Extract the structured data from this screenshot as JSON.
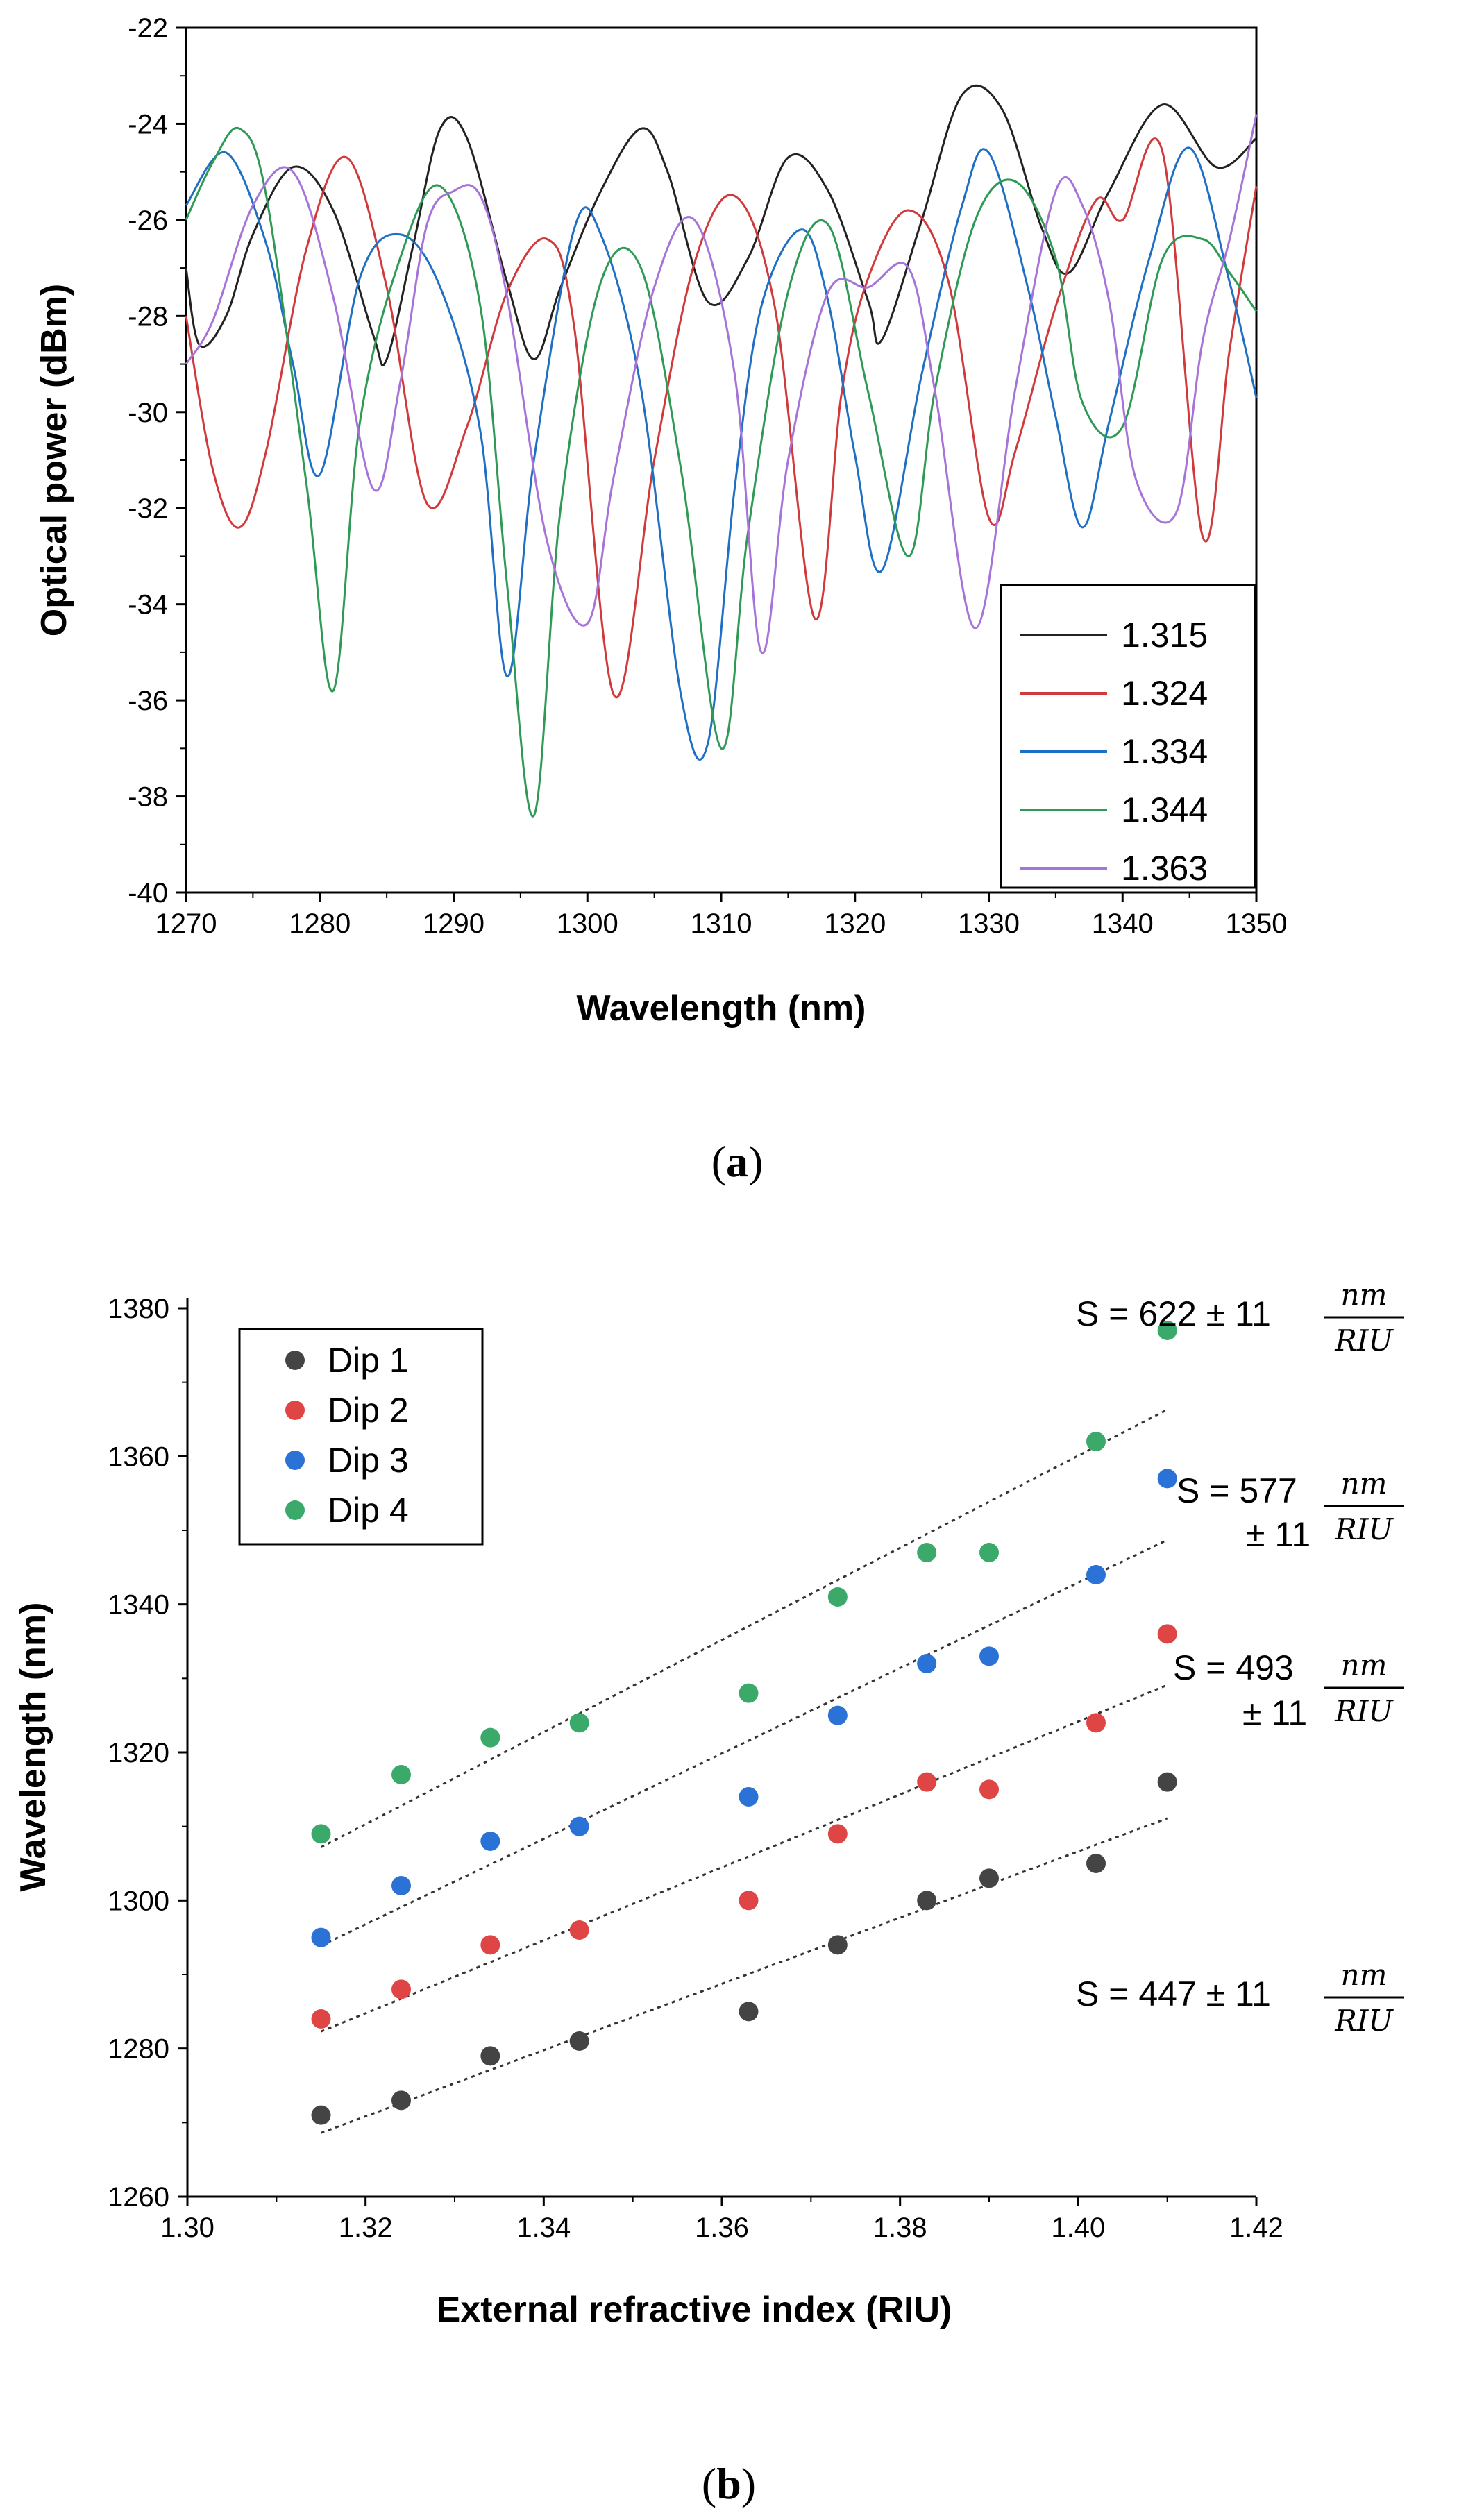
{
  "chart_data": [
    {
      "type": "line",
      "caption_open": "(",
      "caption_letter": "a",
      "caption_close": ")",
      "xlabel": "Wavelength (nm)",
      "ylabel": "Optical power (dBm)",
      "xlim": [
        1270,
        1350
      ],
      "ylim": [
        -40,
        -22
      ],
      "xticks": [
        1270,
        1280,
        1290,
        1300,
        1310,
        1320,
        1330,
        1340,
        1350
      ],
      "yticks": [
        -40,
        -38,
        -36,
        -34,
        -32,
        -30,
        -28,
        -26,
        -24,
        -22
      ],
      "legend_position": "bottom-right",
      "series": [
        {
          "name": "1.315",
          "color": "#222222",
          "x": [
            1270,
            1271,
            1273,
            1275,
            1278,
            1281,
            1284,
            1285,
            1287,
            1289,
            1291,
            1294,
            1296,
            1298,
            1301,
            1304,
            1306,
            1309,
            1312,
            1315,
            1318,
            1321,
            1322,
            1325,
            1328,
            1331,
            1334,
            1336,
            1339,
            1343,
            1347,
            1350
          ],
          "y": [
            -27.0,
            -28.6,
            -28.0,
            -26.3,
            -24.9,
            -25.8,
            -28.4,
            -28.9,
            -26.5,
            -24.1,
            -24.3,
            -27.3,
            -28.9,
            -27.4,
            -25.4,
            -24.1,
            -25.0,
            -27.7,
            -26.8,
            -24.7,
            -25.4,
            -27.7,
            -28.5,
            -26.0,
            -23.4,
            -23.7,
            -26.2,
            -27.1,
            -25.4,
            -23.6,
            -24.9,
            -24.3
          ]
        },
        {
          "name": "1.324",
          "color": "#d03a3a",
          "x": [
            1270,
            1272,
            1274,
            1276,
            1279,
            1282,
            1285,
            1288,
            1291,
            1294,
            1297,
            1299,
            1302,
            1305,
            1308,
            1311,
            1314,
            1317,
            1319,
            1321,
            1324,
            1327,
            1330,
            1332,
            1335,
            1338,
            1340,
            1343,
            1346,
            1348,
            1350
          ],
          "y": [
            -28.0,
            -31.2,
            -32.4,
            -30.8,
            -26.6,
            -24.7,
            -27.4,
            -31.9,
            -30.3,
            -27.5,
            -26.4,
            -28.2,
            -35.9,
            -31.0,
            -26.9,
            -25.5,
            -27.8,
            -34.3,
            -29.6,
            -27.2,
            -25.8,
            -27.3,
            -32.2,
            -30.8,
            -27.8,
            -25.6,
            -26.0,
            -24.6,
            -32.6,
            -28.7,
            -25.3
          ]
        },
        {
          "name": "1.334",
          "color": "#1f6fc5",
          "x": [
            1270,
            1273,
            1276,
            1278,
            1280,
            1283,
            1286,
            1289,
            1292,
            1294,
            1296,
            1299,
            1301,
            1304,
            1307,
            1309,
            1311,
            1313,
            1316,
            1318,
            1320,
            1322,
            1325,
            1328,
            1330,
            1333,
            1335,
            1337,
            1339,
            1342,
            1345,
            1348,
            1350
          ],
          "y": [
            -25.7,
            -24.6,
            -26.5,
            -29.0,
            -31.3,
            -27.2,
            -26.3,
            -27.4,
            -30.4,
            -35.5,
            -31.0,
            -26.2,
            -26.3,
            -29.5,
            -35.9,
            -36.9,
            -31.6,
            -27.8,
            -26.2,
            -27.7,
            -30.9,
            -33.3,
            -29.2,
            -25.7,
            -24.6,
            -27.5,
            -30.1,
            -32.4,
            -30.2,
            -26.8,
            -24.5,
            -27.3,
            -29.7
          ]
        },
        {
          "name": "1.344",
          "color": "#2e9a55",
          "x": [
            1270,
            1272,
            1274,
            1276,
            1279,
            1281,
            1283,
            1286,
            1289,
            1292,
            1294,
            1296,
            1298,
            1301,
            1304,
            1307,
            1310,
            1312,
            1315,
            1318,
            1321,
            1324,
            1326,
            1329,
            1332,
            1335,
            1337,
            1340,
            1343,
            1346,
            1348,
            1350
          ],
          "y": [
            -26.0,
            -24.8,
            -24.1,
            -25.5,
            -31.5,
            -35.8,
            -30.2,
            -26.8,
            -25.3,
            -27.8,
            -33.6,
            -38.4,
            -32.0,
            -27.3,
            -27.0,
            -31.2,
            -37.0,
            -32.5,
            -27.5,
            -26.1,
            -29.6,
            -33.0,
            -29.5,
            -26.0,
            -25.2,
            -26.8,
            -29.8,
            -30.3,
            -26.8,
            -26.4,
            -27.1,
            -27.9
          ]
        },
        {
          "name": "1.363",
          "color": "#a673d9",
          "x": [
            1270,
            1272,
            1275,
            1278,
            1281,
            1284,
            1286,
            1288,
            1290,
            1292,
            1294,
            1297,
            1300,
            1302,
            1305,
            1308,
            1311,
            1313,
            1315,
            1318,
            1321,
            1324,
            1326,
            1329,
            1332,
            1335,
            1337,
            1339,
            1341,
            1344,
            1346,
            1348,
            1350
          ],
          "y": [
            -29.0,
            -28.1,
            -25.7,
            -25.0,
            -27.6,
            -31.6,
            -29.4,
            -26.1,
            -25.4,
            -25.5,
            -27.6,
            -32.7,
            -34.4,
            -31.3,
            -27.4,
            -26.0,
            -29.2,
            -35.0,
            -31.0,
            -27.5,
            -27.4,
            -27.0,
            -29.6,
            -34.5,
            -29.5,
            -25.4,
            -25.7,
            -27.7,
            -31.4,
            -32.1,
            -28.5,
            -26.4,
            -23.8
          ]
        }
      ]
    },
    {
      "type": "scatter",
      "caption_open": "(",
      "caption_letter": "b",
      "caption_close": ")",
      "xlabel": "External refractive index (RIU)",
      "ylabel": "Wavelength (nm)",
      "xlim": [
        1.3,
        1.42
      ],
      "ylim": [
        1260,
        1380
      ],
      "xticks": [
        "1.30",
        "1.32",
        "1.34",
        "1.36",
        "1.38",
        "1.40",
        "1.42"
      ],
      "yticks": [
        "1260",
        "1280",
        "1300",
        "1320",
        "1340",
        "1360",
        "1380"
      ],
      "legend_position": "top-left",
      "x": [
        1.315,
        1.324,
        1.334,
        1.344,
        1.363,
        1.373,
        1.383,
        1.39,
        1.402,
        1.41
      ],
      "series": [
        {
          "name": "Dip 1",
          "color": "#444444",
          "values": [
            1271,
            1273,
            1279,
            1281,
            1285,
            1294,
            1300,
            1303,
            1305,
            1316
          ],
          "fit": [
            1268.6,
            1311.1
          ],
          "annotation": {
            "line1": "S = 447 ± 11",
            "line2": "",
            "num": "nm",
            "den": "RIU"
          }
        },
        {
          "name": "Dip 2",
          "color": "#e04545",
          "values": [
            1284,
            1288,
            1294,
            1296,
            1300,
            1309,
            1316,
            1315,
            1324,
            1336
          ],
          "fit": [
            1282.3,
            1329.1
          ],
          "annotation": {
            "line1": "S = 493",
            "line2": "± 11",
            "num": "nm",
            "den": "RIU"
          }
        },
        {
          "name": "Dip 3",
          "color": "#2a72d6",
          "values": [
            1295,
            1302,
            1308,
            1310,
            1314,
            1325,
            1332,
            1333,
            1344,
            1357
          ],
          "fit": [
            1293.9,
            1348.7
          ],
          "annotation": {
            "line1": "S = 577",
            "line2": "± 11",
            "num": "nm",
            "den": "RIU"
          }
        },
        {
          "name": "Dip 4",
          "color": "#3aa96a",
          "values": [
            1309,
            1317,
            1322,
            1324,
            1328,
            1341,
            1347,
            1347,
            1362,
            1377
          ],
          "fit": [
            1307.2,
            1366.3
          ],
          "annotation": {
            "line1": "S = 622 ± 11",
            "line2": "",
            "num": "nm",
            "den": "RIU"
          }
        }
      ]
    }
  ]
}
